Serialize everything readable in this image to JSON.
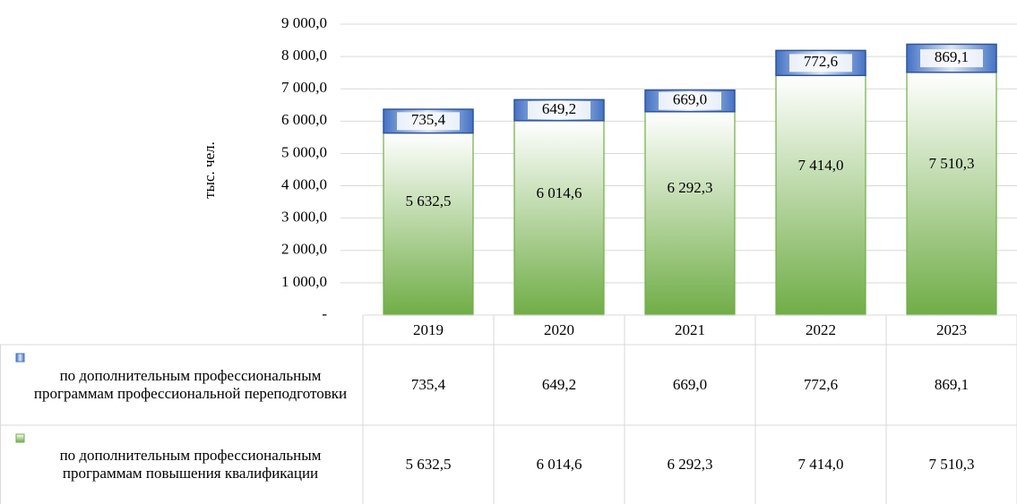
{
  "chart_data": {
    "type": "stacked_bar",
    "y_label": "тыс. чел.",
    "categories": [
      "2019",
      "2020",
      "2021",
      "2022",
      "2023"
    ],
    "series": [
      {
        "name": "по дополнительным профессиональным программам повышения квалификации",
        "color": "#70ad47",
        "values": [
          5632.5,
          6014.6,
          6292.3,
          7414.0,
          7510.3
        ],
        "value_labels": [
          "5 632,5",
          "6 014,6",
          "6 292,3",
          "7 414,0",
          "7 510,3"
        ]
      },
      {
        "name": "по дополнительным профессиональным программам профессиональной переподготовки",
        "color": "#4472c4",
        "values": [
          735.4,
          649.2,
          669.0,
          772.6,
          869.1
        ],
        "value_labels": [
          "735,4",
          "649,2",
          "669,0",
          "772,6",
          "869,1"
        ]
      }
    ],
    "ylim": [
      0,
      9000
    ],
    "yticks": [
      {
        "value": 0,
        "label": "-"
      },
      {
        "value": 1000,
        "label": "1 000,0"
      },
      {
        "value": 2000,
        "label": "2 000,0"
      },
      {
        "value": 3000,
        "label": "3 000,0"
      },
      {
        "value": 4000,
        "label": "4 000,0"
      },
      {
        "value": 5000,
        "label": "5 000,0"
      },
      {
        "value": 6000,
        "label": "6 000,0"
      },
      {
        "value": 7000,
        "label": "7 000,0"
      },
      {
        "value": 8000,
        "label": "8 000,0"
      },
      {
        "value": 9000,
        "label": "9 000,0"
      }
    ],
    "grid": true,
    "data_table": true
  }
}
